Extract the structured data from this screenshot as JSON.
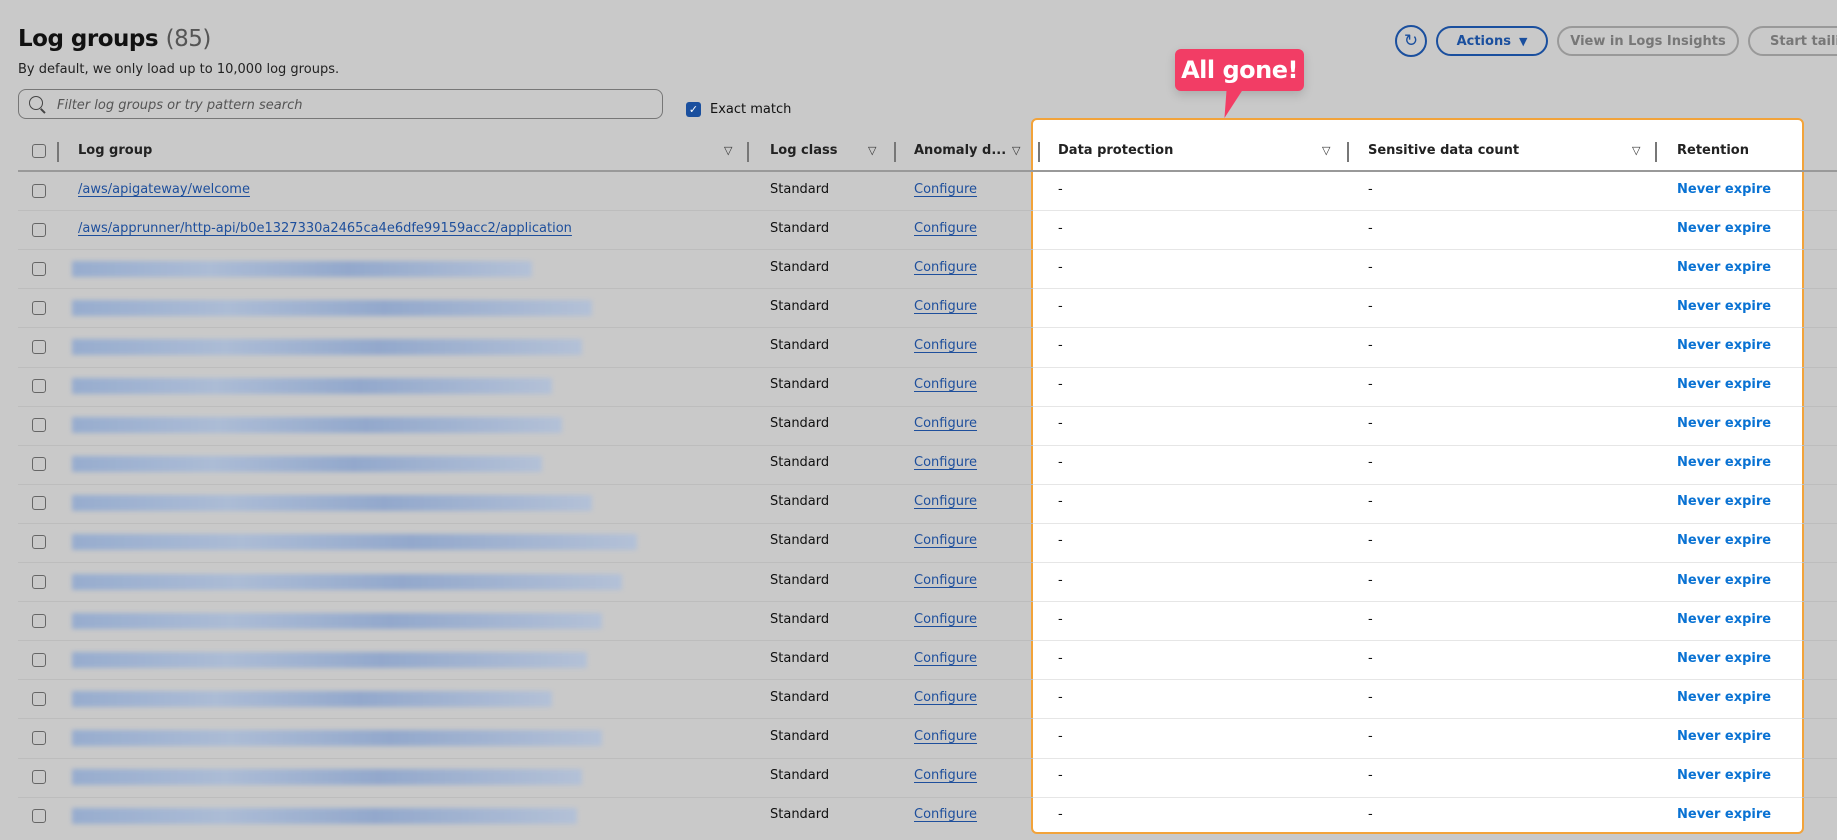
{
  "header": {
    "title": "Log groups",
    "count": "(85)",
    "subtitle": "By default, we only load up to 10,000 log groups.",
    "search_placeholder": "Filter log groups or try pattern search",
    "exact_match_label": "Exact match",
    "exact_match_checked": true
  },
  "toolbar": {
    "refresh_icon": "refresh-icon",
    "actions_label": "Actions",
    "view_insights_label": "View in Logs Insights",
    "start_tailing_label": "Start tailing"
  },
  "annotation": {
    "text": "All gone!",
    "color": "#f23d65",
    "highlight_color": "#f2a33a"
  },
  "columns": {
    "log_group": "Log group",
    "log_class": "Log class",
    "anomaly": "Anomaly d...",
    "data_protection": "Data protection",
    "sensitive": "Sensitive data count",
    "retention": "Retention"
  },
  "rows": [
    {
      "log_group": "/aws/apigateway/welcome",
      "log_class": "Standard",
      "anomaly": "Configure",
      "data_protection": "-",
      "sensitive": "-",
      "retention": "Never expire"
    },
    {
      "log_group": "/aws/apprunner/http-api/b0e1327330a2465ca4e6dfe99159acc2/application",
      "log_class": "Standard",
      "anomaly": "Configure",
      "data_protection": "-",
      "sensitive": "-",
      "retention": "Never expire"
    },
    {
      "log_group": null,
      "redacted": true,
      "log_class": "Standard",
      "anomaly": "Configure",
      "data_protection": "-",
      "sensitive": "-",
      "retention": "Never expire"
    },
    {
      "log_group": null,
      "redacted": true,
      "log_class": "Standard",
      "anomaly": "Configure",
      "data_protection": "-",
      "sensitive": "-",
      "retention": "Never expire"
    },
    {
      "log_group": null,
      "redacted": true,
      "log_class": "Standard",
      "anomaly": "Configure",
      "data_protection": "-",
      "sensitive": "-",
      "retention": "Never expire"
    },
    {
      "log_group": null,
      "redacted": true,
      "log_class": "Standard",
      "anomaly": "Configure",
      "data_protection": "-",
      "sensitive": "-",
      "retention": "Never expire"
    },
    {
      "log_group": null,
      "redacted": true,
      "log_class": "Standard",
      "anomaly": "Configure",
      "data_protection": "-",
      "sensitive": "-",
      "retention": "Never expire"
    },
    {
      "log_group": null,
      "redacted": true,
      "log_class": "Standard",
      "anomaly": "Configure",
      "data_protection": "-",
      "sensitive": "-",
      "retention": "Never expire"
    },
    {
      "log_group": null,
      "redacted": true,
      "log_class": "Standard",
      "anomaly": "Configure",
      "data_protection": "-",
      "sensitive": "-",
      "retention": "Never expire"
    },
    {
      "log_group": null,
      "redacted": true,
      "log_class": "Standard",
      "anomaly": "Configure",
      "data_protection": "-",
      "sensitive": "-",
      "retention": "Never expire"
    },
    {
      "log_group": null,
      "redacted": true,
      "log_class": "Standard",
      "anomaly": "Configure",
      "data_protection": "-",
      "sensitive": "-",
      "retention": "Never expire"
    },
    {
      "log_group": null,
      "redacted": true,
      "log_class": "Standard",
      "anomaly": "Configure",
      "data_protection": "-",
      "sensitive": "-",
      "retention": "Never expire"
    },
    {
      "log_group": null,
      "redacted": true,
      "log_class": "Standard",
      "anomaly": "Configure",
      "data_protection": "-",
      "sensitive": "-",
      "retention": "Never expire"
    },
    {
      "log_group": null,
      "redacted": true,
      "log_class": "Standard",
      "anomaly": "Configure",
      "data_protection": "-",
      "sensitive": "-",
      "retention": "Never expire"
    },
    {
      "log_group": null,
      "redacted": true,
      "log_class": "Standard",
      "anomaly": "Configure",
      "data_protection": "-",
      "sensitive": "-",
      "retention": "Never expire"
    },
    {
      "log_group": null,
      "redacted": true,
      "log_class": "Standard",
      "anomaly": "Configure",
      "data_protection": "-",
      "sensitive": "-",
      "retention": "Never expire"
    },
    {
      "log_group": null,
      "redacted": true,
      "log_class": "Standard",
      "anomaly": "Configure",
      "data_protection": "-",
      "sensitive": "-",
      "retention": "Never expire"
    }
  ]
}
